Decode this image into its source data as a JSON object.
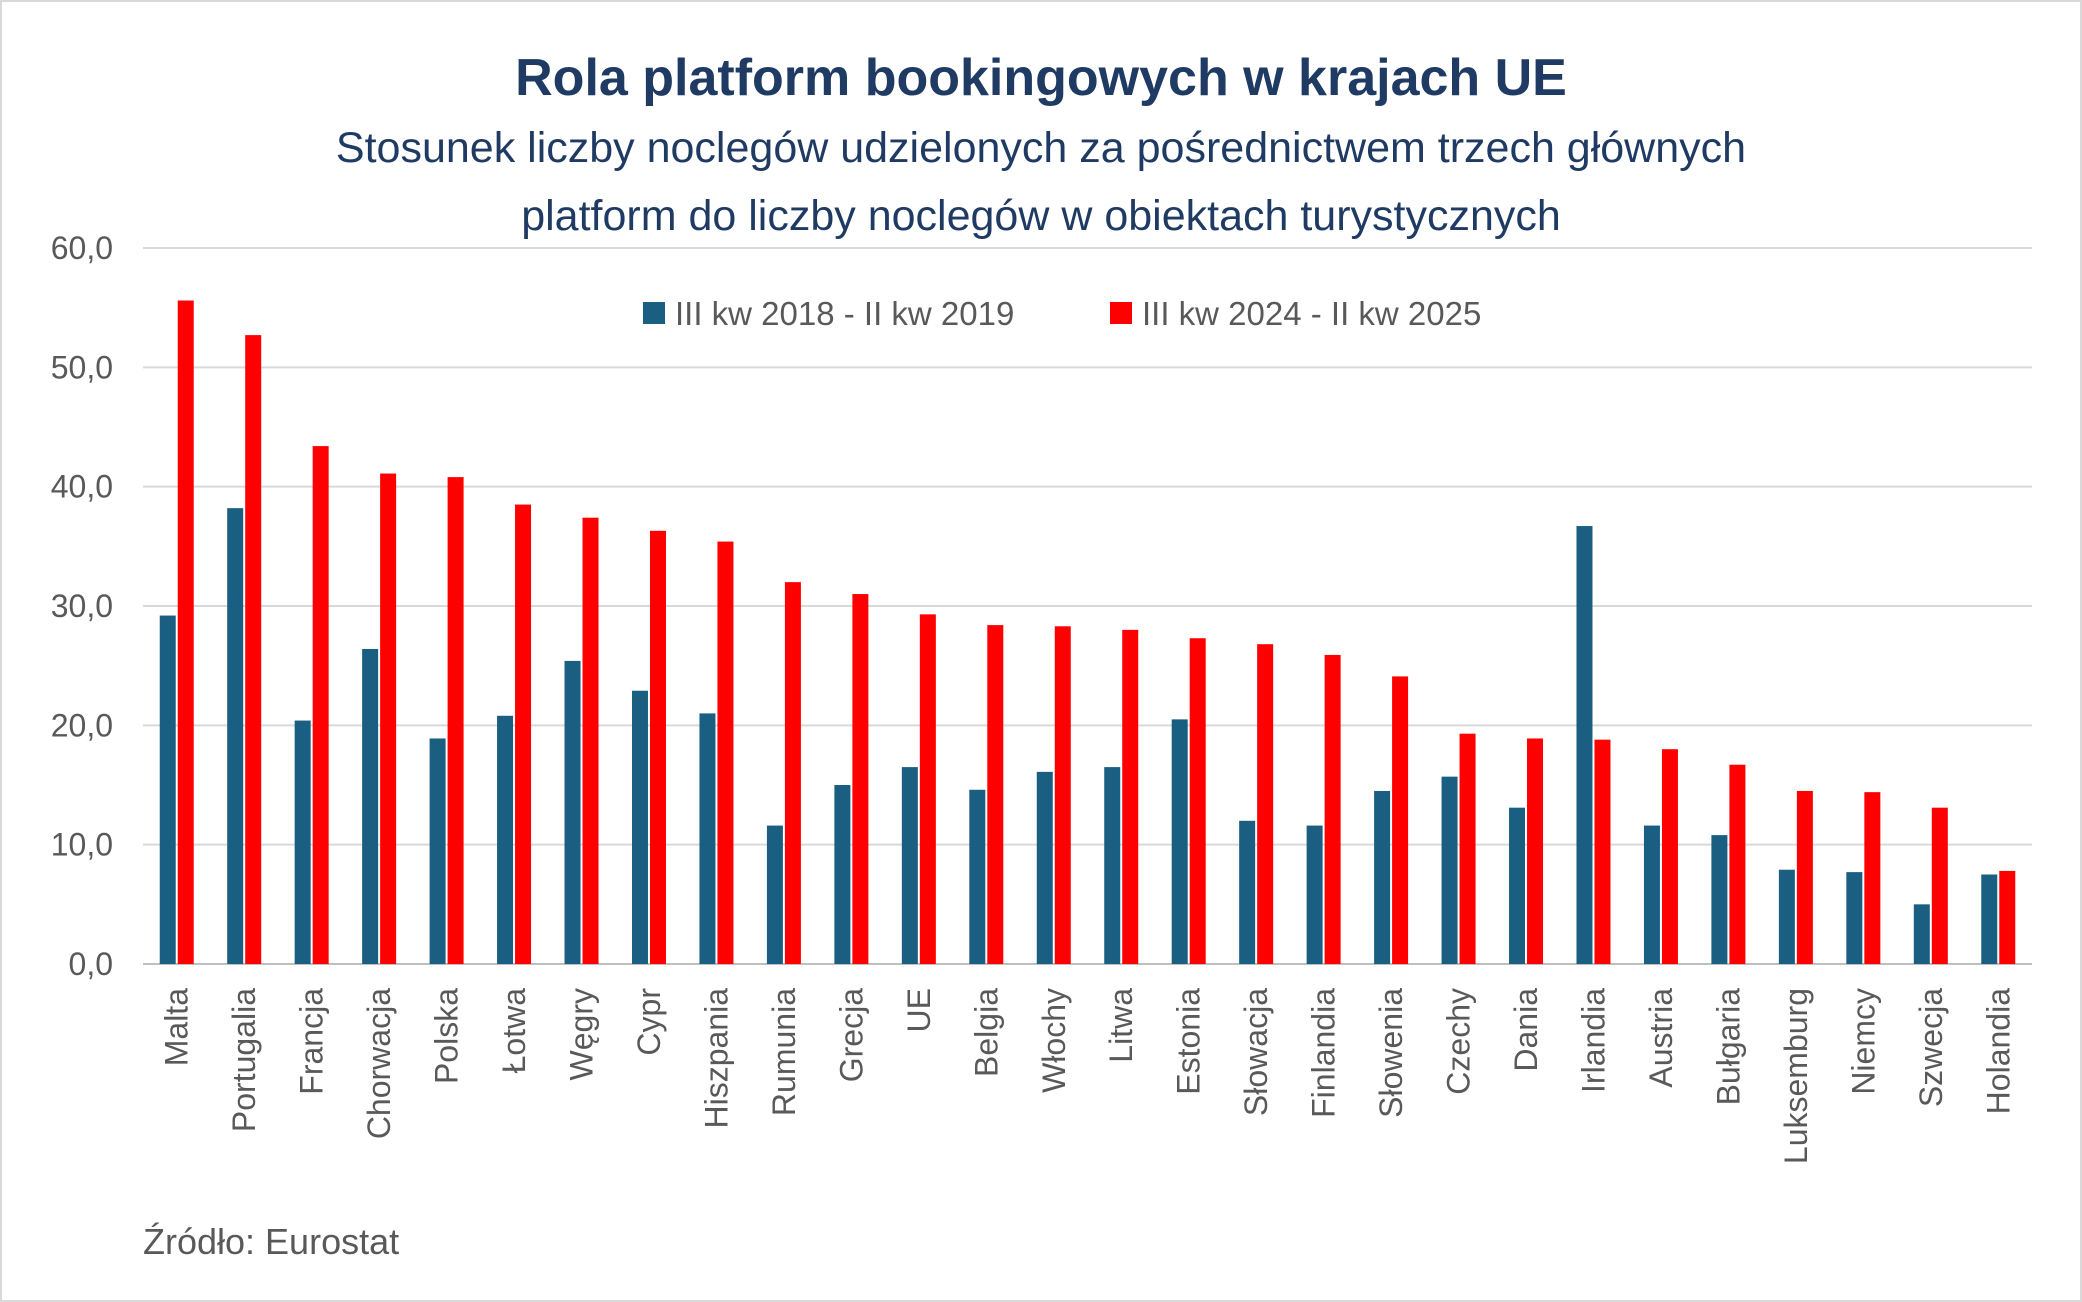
{
  "chart_data": {
    "type": "bar",
    "title": "Rola platform bookingowych w krajach UE",
    "subtitle": [
      "Stosunek liczby noclegów udzielonych za pośrednictwem trzech głównych",
      "platform do liczby noclegów w obiektach turystycznych"
    ],
    "xlabel": "",
    "ylabel": "",
    "ylim": [
      0,
      60
    ],
    "yticks": [
      "0,0",
      "10,0",
      "20,0",
      "30,0",
      "40,0",
      "50,0",
      "60,0"
    ],
    "grid": true,
    "legend_position": "top",
    "categories": [
      "Malta",
      "Portugalia",
      "Francja",
      "Chorwacja",
      "Polska",
      "Łotwa",
      "Węgry",
      "Cypr",
      "Hiszpania",
      "Rumunia",
      "Grecja",
      "UE",
      "Belgia",
      "Włochy",
      "Litwa",
      "Estonia",
      "Słowacja",
      "Finlandia",
      "Słowenia",
      "Czechy",
      "Dania",
      "Irlandia",
      "Austria",
      "Bułgaria",
      "Luksemburg",
      "Niemcy",
      "Szwecja",
      "Holandia"
    ],
    "series": [
      {
        "name": "III kw 2018 - II kw 2019",
        "color": "#1a5f82",
        "values": [
          29.2,
          38.2,
          20.4,
          26.4,
          18.9,
          20.8,
          25.4,
          22.9,
          21.0,
          11.6,
          15.0,
          16.5,
          14.6,
          16.1,
          16.5,
          20.5,
          12.0,
          11.6,
          14.5,
          15.7,
          13.1,
          36.7,
          11.6,
          10.8,
          7.9,
          7.7,
          5.0,
          7.5
        ]
      },
      {
        "name": "III kw 2024 - II kw 2025",
        "color": "#ff0000",
        "values": [
          55.6,
          52.7,
          43.4,
          41.1,
          40.8,
          38.5,
          37.4,
          36.3,
          35.4,
          32.0,
          31.0,
          29.3,
          28.4,
          28.3,
          28.0,
          27.3,
          26.8,
          25.9,
          24.1,
          19.3,
          18.9,
          18.8,
          18.0,
          16.7,
          14.5,
          14.4,
          13.1,
          7.8
        ]
      }
    ],
    "source": "Źródło: Eurostat"
  }
}
